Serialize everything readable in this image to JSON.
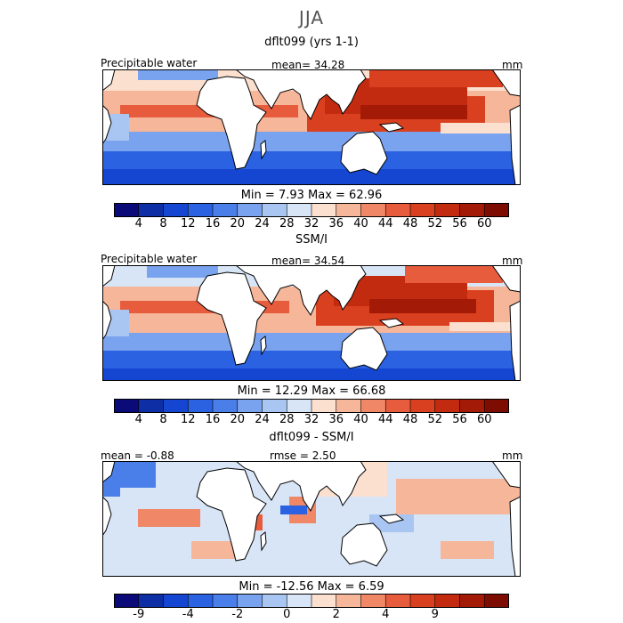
{
  "season": "JJA",
  "palette_main": [
    "#0a0a78",
    "#0e2ea6",
    "#1446d2",
    "#2a62e2",
    "#4a7ee8",
    "#79a3ee",
    "#a9c6f2",
    "#d7e5f7",
    "#fbe0cf",
    "#f6b699",
    "#f08766",
    "#e85c3e",
    "#d9401f",
    "#c22b10",
    "#a31a06",
    "#7d0d00"
  ],
  "palette_diff": [
    "#0a0a78",
    "#0e2ea6",
    "#1446d2",
    "#2a62e2",
    "#4a7ee8",
    "#79a3ee",
    "#a9c6f2",
    "#d7e5f7",
    "#fbe0cf",
    "#f6b699",
    "#f08766",
    "#e85c3e",
    "#d9401f",
    "#c22b10",
    "#a31a06",
    "#7d0d00"
  ],
  "panels": [
    {
      "title": "dflt099 (yrs 1-1)",
      "left_label": "Precipitable water",
      "center_label": "mean=  34.28",
      "unit": "mm",
      "stats": "Min =    7.93 Max =   62.96",
      "ticks": [
        "4",
        "8",
        "12",
        "16",
        "20",
        "24",
        "28",
        "32",
        "36",
        "40",
        "44",
        "48",
        "52",
        "56",
        "60"
      ]
    },
    {
      "title": "SSM/I",
      "left_label": "Precipitable water",
      "center_label": "mean=  34.54",
      "unit": "mm",
      "stats": "Min =   12.29 Max =   66.68",
      "ticks": [
        "4",
        "8",
        "12",
        "16",
        "20",
        "24",
        "28",
        "32",
        "36",
        "40",
        "44",
        "48",
        "52",
        "56",
        "60"
      ]
    },
    {
      "title": "dflt099 - SSM/I",
      "left_label": "mean =  -0.88",
      "center_label": "rmse =    2.50",
      "unit": "mm",
      "stats": "Min =  -12.56 Max =    6.59",
      "ticks": [
        "-9",
        "",
        "-4",
        "",
        "-2",
        "",
        "0",
        "",
        "2",
        "",
        "4",
        "",
        "9",
        ""
      ]
    }
  ],
  "chart_data": {
    "type": "heatmap",
    "title": "JJA",
    "panels": [
      {
        "name": "dflt099 (yrs 1-1)",
        "variable": "Precipitable water",
        "unit": "mm",
        "mean": 34.28,
        "min": 7.93,
        "max": 62.96,
        "levels": [
          4,
          8,
          12,
          16,
          20,
          24,
          28,
          32,
          36,
          40,
          44,
          48,
          52,
          56,
          60
        ]
      },
      {
        "name": "SSM/I",
        "variable": "Precipitable water",
        "unit": "mm",
        "mean": 34.54,
        "min": 12.29,
        "max": 66.68,
        "levels": [
          4,
          8,
          12,
          16,
          20,
          24,
          28,
          32,
          36,
          40,
          44,
          48,
          52,
          56,
          60
        ]
      },
      {
        "name": "dflt099 - SSM/I",
        "unit": "mm",
        "mean": -0.88,
        "rmse": 2.5,
        "min": -12.56,
        "max": 6.59,
        "levels": [
          -9,
          -4,
          -2,
          0,
          2,
          4,
          9
        ]
      }
    ]
  }
}
